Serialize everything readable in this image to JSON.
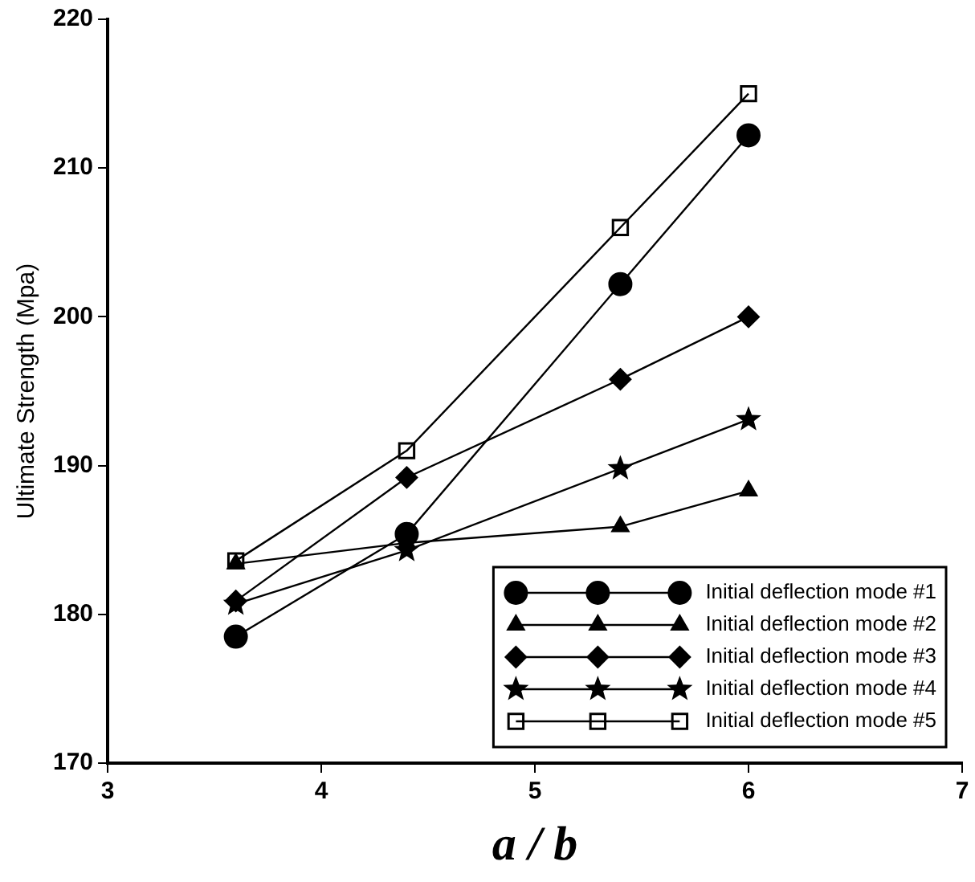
{
  "chart_data": {
    "type": "line",
    "xlabel": "a / b",
    "ylabel": "Ultimate Strength (Mpa)",
    "x": [
      3.6,
      4.4,
      5.4,
      6
    ],
    "series": [
      {
        "name": "Initial deflection mode #1",
        "color": "#000000",
        "marker": "circle",
        "values": [
          178.5,
          185.4,
          202.2,
          212.2
        ]
      },
      {
        "name": "Initial deflection mode #2",
        "color": "#000000",
        "marker": "triangle",
        "values": [
          183.4,
          184.8,
          185.9,
          188.3
        ]
      },
      {
        "name": "Initial deflection mode #3",
        "color": "#000000",
        "marker": "diamond",
        "values": [
          180.9,
          189.2,
          195.8,
          200
        ]
      },
      {
        "name": "Initial deflection mode #4",
        "color": "#000000",
        "marker": "star",
        "values": [
          180.7,
          184.3,
          189.8,
          193.1
        ]
      },
      {
        "name": "Initial deflection mode #5",
        "color": "#000000",
        "marker": "square",
        "values": [
          183.6,
          191,
          206,
          215
        ]
      }
    ],
    "xlim": [
      3,
      7
    ],
    "xticks": [
      3,
      4,
      5,
      6,
      7
    ],
    "ylim": [
      170,
      220
    ],
    "yticks": [
      170,
      180,
      190,
      200,
      210,
      220
    ],
    "grid": false,
    "legend": "bottom right",
    "line_style": "solid"
  }
}
